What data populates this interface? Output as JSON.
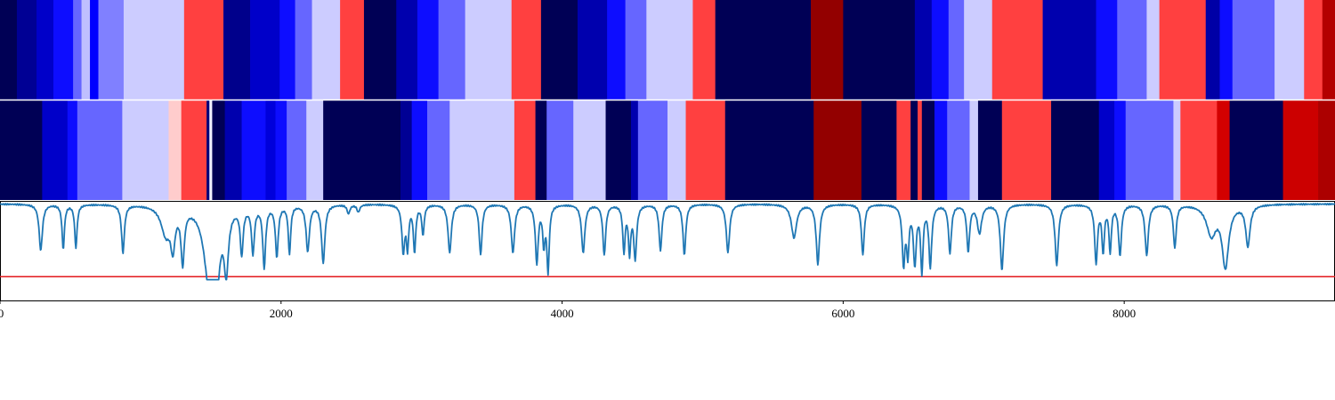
{
  "chart_data": {
    "type": "line",
    "xlim": [
      0,
      9500
    ],
    "x_ticks": [
      "0",
      "2000",
      "4000",
      "6000",
      "8000"
    ],
    "x_tick_values": [
      0,
      2000,
      4000,
      6000,
      8000
    ],
    "colors": {
      "line": "#1f77b4",
      "threshold": "#e31a1c",
      "frame": "#000000",
      "separator": "#ffffff"
    },
    "threshold": 0.0,
    "ylim": [
      -0.32,
      1.02
    ],
    "colormap": "seismic",
    "heat_ylim": [
      -4,
      4
    ],
    "heatmap_rows": [
      {
        "segments": [
          [
            0,
            120,
            -3.9
          ],
          [
            120,
            260,
            -3.2
          ],
          [
            260,
            380,
            -2.6
          ],
          [
            380,
            520,
            -1.9
          ],
          [
            520,
            580,
            -1.2
          ],
          [
            580,
            640,
            -0.5
          ],
          [
            640,
            700,
            -2.0
          ],
          [
            700,
            880,
            -1.0
          ],
          [
            880,
            1310,
            -0.4
          ],
          [
            1310,
            1590,
            1.5
          ],
          [
            1590,
            1780,
            -3.3
          ],
          [
            1780,
            1990,
            -2.6
          ],
          [
            1990,
            2100,
            -1.9
          ],
          [
            2100,
            2220,
            -1.2
          ],
          [
            2220,
            2420,
            -0.4
          ],
          [
            2420,
            2590,
            1.5
          ],
          [
            2590,
            2820,
            -3.9
          ],
          [
            2820,
            2970,
            -2.9
          ],
          [
            2970,
            3120,
            -1.9
          ],
          [
            3120,
            3310,
            -1.2
          ],
          [
            3310,
            3640,
            -0.4
          ],
          [
            3640,
            3850,
            1.5
          ],
          [
            3850,
            4110,
            -3.9
          ],
          [
            4110,
            4320,
            -2.9
          ],
          [
            4320,
            4450,
            -1.9
          ],
          [
            4450,
            4600,
            -1.2
          ],
          [
            4600,
            4930,
            -0.4
          ],
          [
            4930,
            5090,
            1.5
          ],
          [
            5090,
            5770,
            -3.9
          ],
          [
            5770,
            6000,
            3.7
          ],
          [
            6000,
            6510,
            -3.9
          ],
          [
            6510,
            6630,
            -2.9
          ],
          [
            6630,
            6750,
            -1.9
          ],
          [
            6750,
            6860,
            -1.2
          ],
          [
            6860,
            7060,
            -0.4
          ],
          [
            7060,
            7420,
            1.5
          ],
          [
            7420,
            7800,
            -2.9
          ],
          [
            7800,
            7950,
            -1.9
          ],
          [
            7950,
            8160,
            -1.2
          ],
          [
            8160,
            8250,
            -0.4
          ],
          [
            8250,
            8580,
            1.5
          ],
          [
            8580,
            8680,
            -3.0
          ],
          [
            8680,
            8770,
            -1.9
          ],
          [
            8770,
            9070,
            -1.2
          ],
          [
            9070,
            9280,
            -0.4
          ],
          [
            9280,
            9410,
            1.5
          ],
          [
            9410,
            9500,
            3.2
          ]
        ]
      },
      {
        "segments": [
          [
            0,
            300,
            -3.9
          ],
          [
            300,
            480,
            -2.6
          ],
          [
            480,
            550,
            -1.9
          ],
          [
            550,
            870,
            -1.2
          ],
          [
            870,
            1200,
            -0.4
          ],
          [
            1200,
            1290,
            0.4
          ],
          [
            1290,
            1470,
            1.5
          ],
          [
            1470,
            1490,
            -3.5
          ],
          [
            1490,
            1510,
            -0.1
          ],
          [
            1510,
            1600,
            -3.9
          ],
          [
            1600,
            1720,
            -2.9
          ],
          [
            1720,
            1890,
            -1.9
          ],
          [
            1890,
            1960,
            -2.4
          ],
          [
            1960,
            2040,
            -1.9
          ],
          [
            2040,
            2180,
            -1.2
          ],
          [
            2180,
            2300,
            -0.4
          ],
          [
            2300,
            2850,
            -3.9
          ],
          [
            2850,
            2930,
            -3.2
          ],
          [
            2930,
            3040,
            -1.9
          ],
          [
            3040,
            3200,
            -1.2
          ],
          [
            3200,
            3400,
            -0.4
          ],
          [
            3400,
            3660,
            -0.4
          ],
          [
            3660,
            3810,
            1.5
          ],
          [
            3810,
            3890,
            -3.9
          ],
          [
            3890,
            4080,
            -1.2
          ],
          [
            4080,
            4310,
            -0.4
          ],
          [
            4310,
            4490,
            -3.9
          ],
          [
            4490,
            4540,
            -2.9
          ],
          [
            4540,
            4750,
            -1.2
          ],
          [
            4750,
            4880,
            -0.4
          ],
          [
            4880,
            5160,
            1.5
          ],
          [
            5160,
            5790,
            -3.9
          ],
          [
            5790,
            6130,
            3.7
          ],
          [
            6130,
            6380,
            -3.9
          ],
          [
            6380,
            6480,
            1.5
          ],
          [
            6480,
            6530,
            -3.9
          ],
          [
            6530,
            6560,
            1.5
          ],
          [
            6560,
            6650,
            -3.9
          ],
          [
            6650,
            6740,
            -1.9
          ],
          [
            6740,
            6900,
            -1.2
          ],
          [
            6900,
            6960,
            -0.4
          ],
          [
            6960,
            7130,
            -3.9
          ],
          [
            7130,
            7480,
            1.5
          ],
          [
            7480,
            7820,
            -3.9
          ],
          [
            7820,
            7930,
            -2.6
          ],
          [
            7930,
            8010,
            -1.9
          ],
          [
            8010,
            8350,
            -1.2
          ],
          [
            8350,
            8400,
            -0.4
          ],
          [
            8400,
            8660,
            1.5
          ],
          [
            8660,
            8750,
            2.7
          ],
          [
            8750,
            9130,
            -3.9
          ],
          [
            9130,
            9380,
            2.8
          ],
          [
            9380,
            9500,
            3.3
          ]
        ]
      }
    ],
    "dips": [
      [
        290,
        0.62,
        14
      ],
      [
        450,
        0.6,
        10
      ],
      [
        540,
        0.58,
        10
      ],
      [
        875,
        0.65,
        12
      ],
      [
        1180,
        0.38,
        40
      ],
      [
        1230,
        0.5,
        18
      ],
      [
        1300,
        0.72,
        14
      ],
      [
        1490,
        1.0,
        45
      ],
      [
        1540,
        0.82,
        28
      ],
      [
        1610,
        0.78,
        18
      ],
      [
        1720,
        0.62,
        12
      ],
      [
        1800,
        0.62,
        12
      ],
      [
        1880,
        0.82,
        12
      ],
      [
        1970,
        0.68,
        12
      ],
      [
        2060,
        0.65,
        10
      ],
      [
        2190,
        0.62,
        14
      ],
      [
        2300,
        0.78,
        14
      ],
      [
        2480,
        0.12,
        12
      ],
      [
        2550,
        0.1,
        12
      ],
      [
        2870,
        0.62,
        12
      ],
      [
        2900,
        0.55,
        10
      ],
      [
        2950,
        0.62,
        10
      ],
      [
        3010,
        0.4,
        10
      ],
      [
        3200,
        0.65,
        14
      ],
      [
        3420,
        0.68,
        12
      ],
      [
        3650,
        0.65,
        14
      ],
      [
        3820,
        0.78,
        12
      ],
      [
        3870,
        0.5,
        10
      ],
      [
        3900,
        0.88,
        10
      ],
      [
        4150,
        0.65,
        14
      ],
      [
        4300,
        0.68,
        12
      ],
      [
        4440,
        0.62,
        10
      ],
      [
        4480,
        0.62,
        10
      ],
      [
        4520,
        0.72,
        12
      ],
      [
        4700,
        0.62,
        12
      ],
      [
        4870,
        0.68,
        12
      ],
      [
        5180,
        0.65,
        14
      ],
      [
        5650,
        0.45,
        22
      ],
      [
        5820,
        0.8,
        14
      ],
      [
        6140,
        0.68,
        12
      ],
      [
        6430,
        0.78,
        12
      ],
      [
        6460,
        0.62,
        10
      ],
      [
        6510,
        0.78,
        12
      ],
      [
        6560,
        0.88,
        10
      ],
      [
        6620,
        0.82,
        12
      ],
      [
        6760,
        0.65,
        12
      ],
      [
        6890,
        0.62,
        12
      ],
      [
        6970,
        0.38,
        18
      ],
      [
        7130,
        0.88,
        14
      ],
      [
        7520,
        0.82,
        14
      ],
      [
        7800,
        0.78,
        12
      ],
      [
        7850,
        0.62,
        10
      ],
      [
        7900,
        0.62,
        10
      ],
      [
        7970,
        0.68,
        12
      ],
      [
        8160,
        0.68,
        14
      ],
      [
        8360,
        0.58,
        12
      ],
      [
        8720,
        0.82,
        28
      ],
      [
        8620,
        0.4,
        40
      ],
      [
        8880,
        0.55,
        18
      ]
    ]
  }
}
